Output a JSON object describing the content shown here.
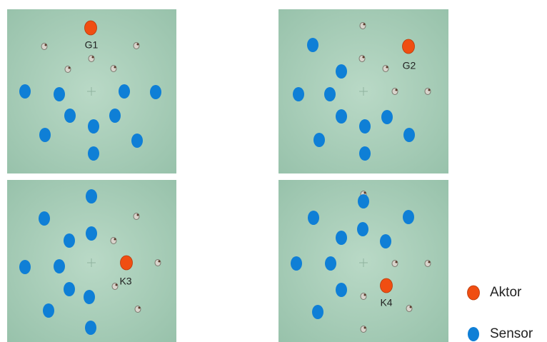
{
  "panels": [
    {
      "label": "G1"
    },
    {
      "label": "G2"
    },
    {
      "label": "K3"
    },
    {
      "label": "K4"
    }
  ],
  "legend": [
    {
      "label": "Aktor"
    },
    {
      "label": "Sensor"
    }
  ]
}
